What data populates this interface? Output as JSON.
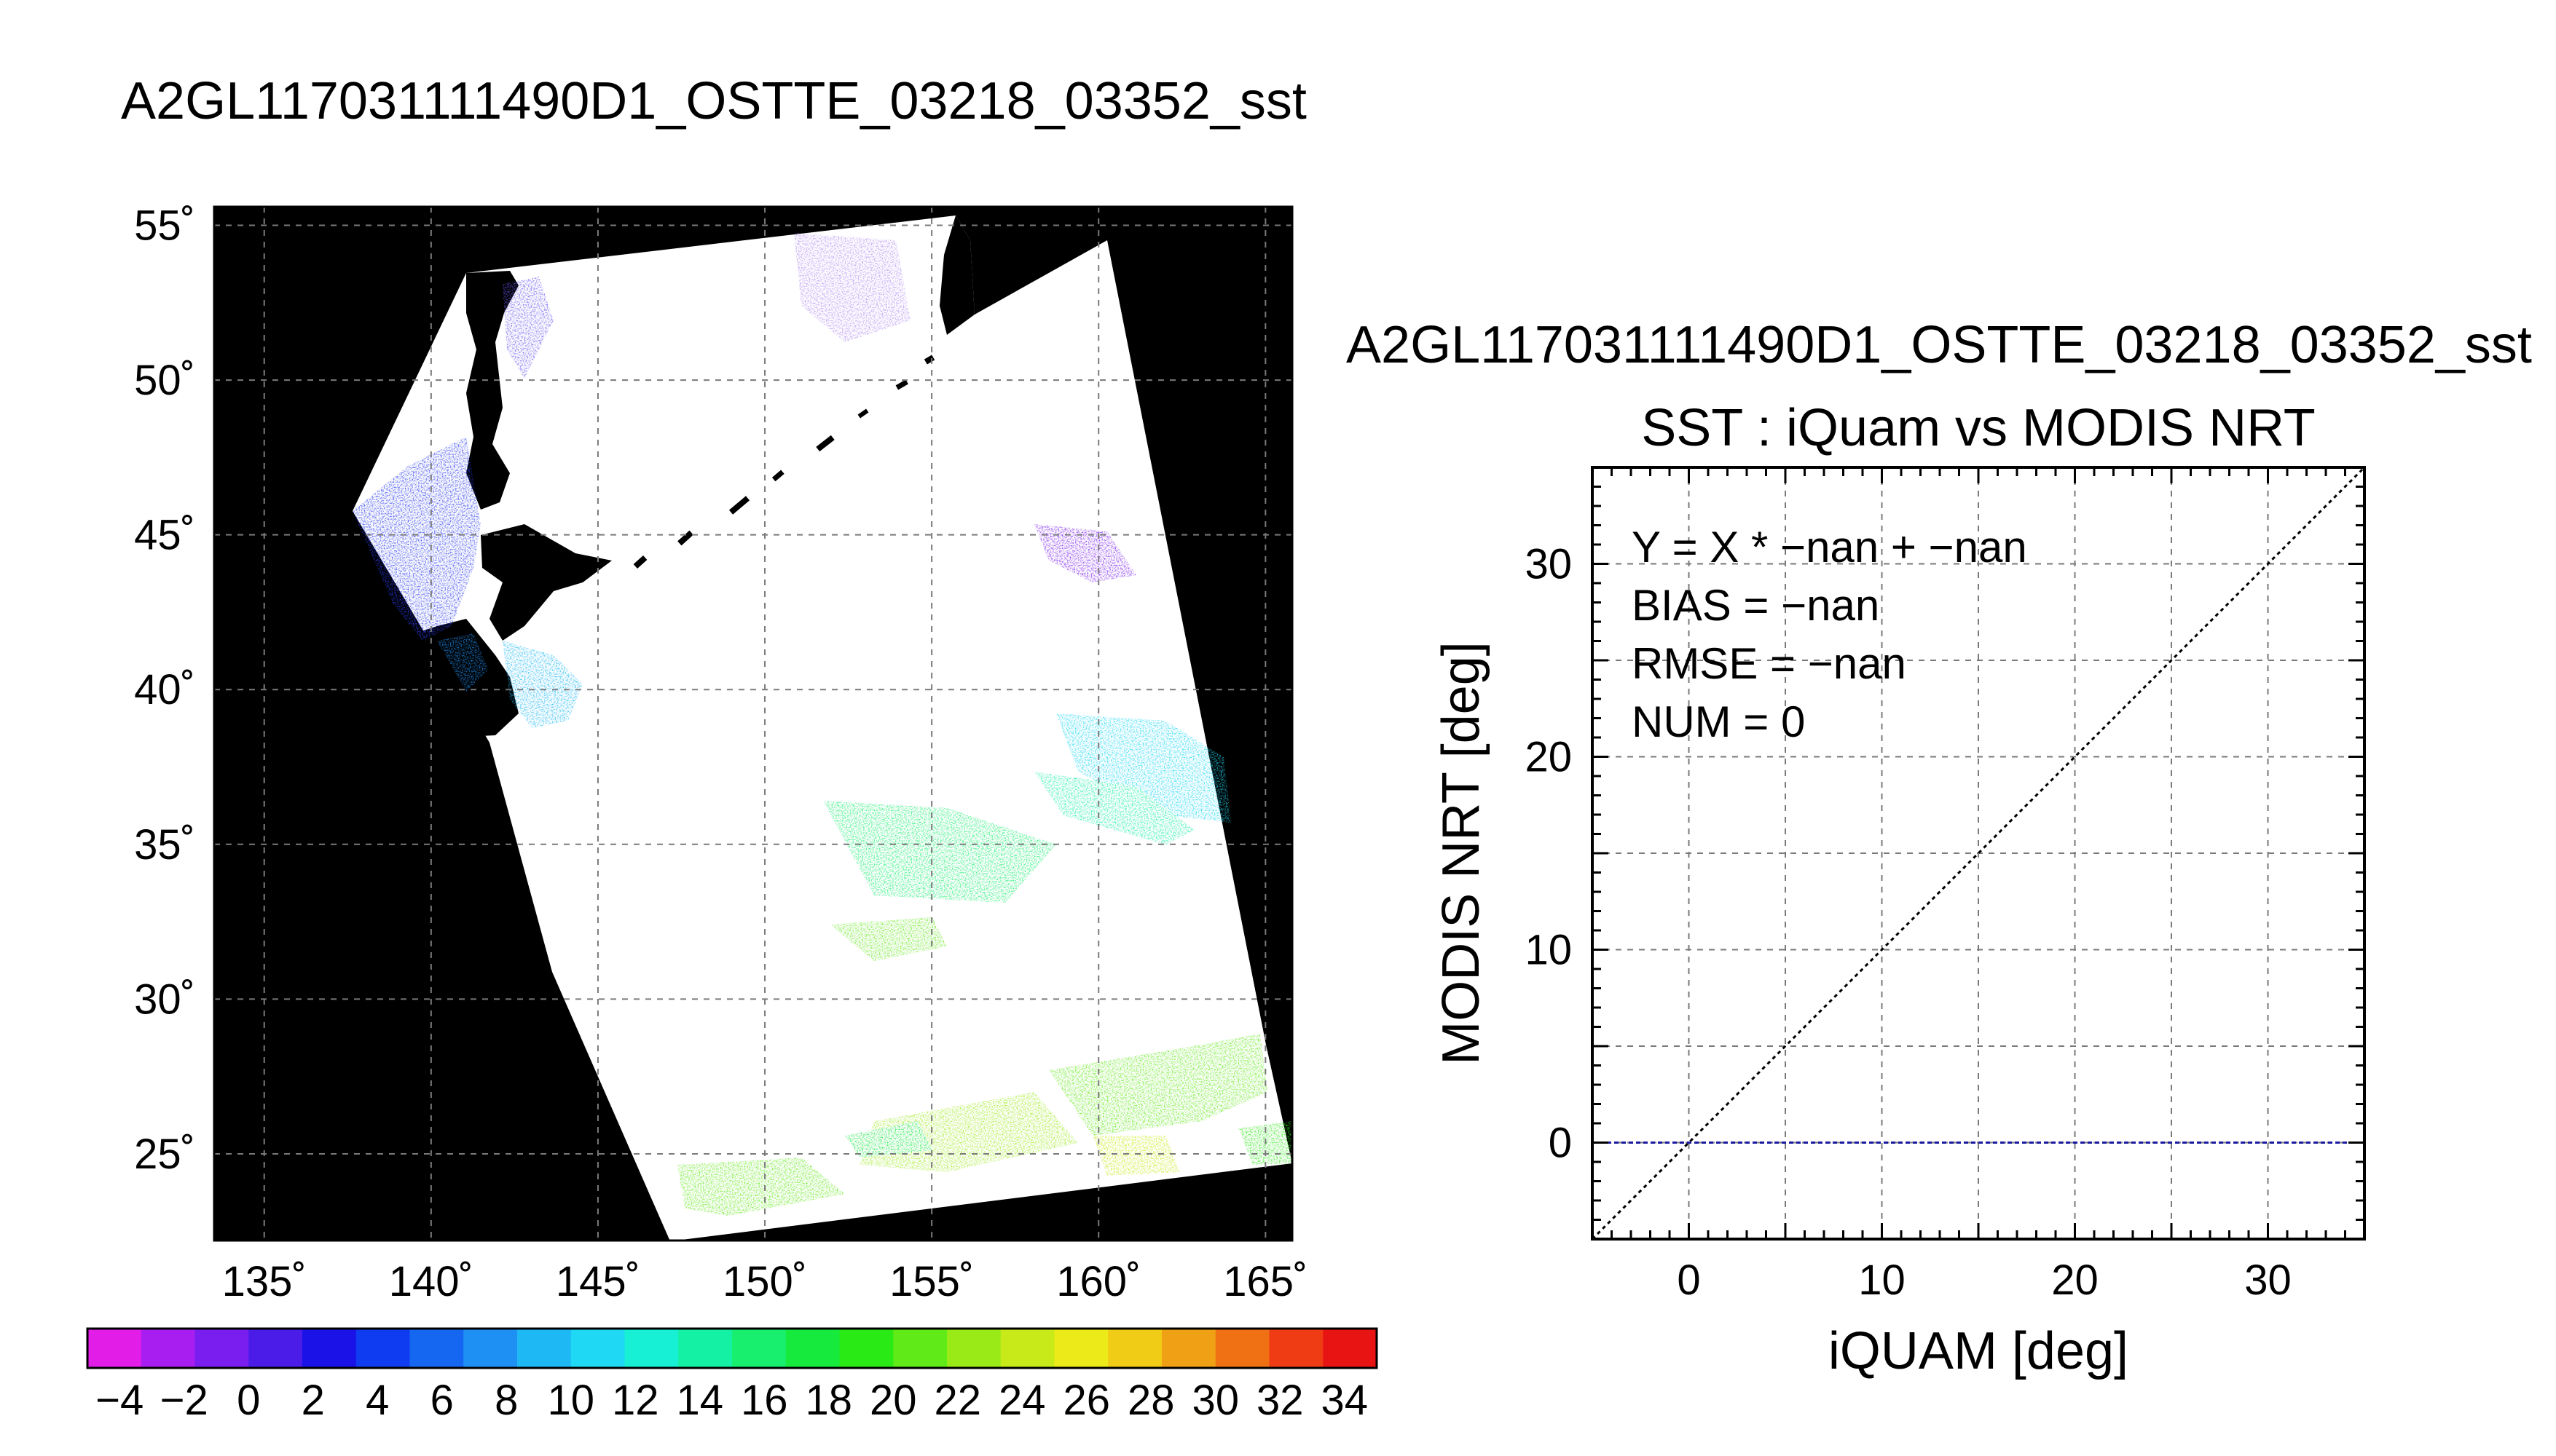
{
  "main_title": "A2GL117031111490D1_OSTTE_03218_03352_sst",
  "chart_data": [
    {
      "type": "heatmap",
      "title": "A2GL117031111490D1_OSTTE_03218_03352_sst",
      "xlabel": "",
      "ylabel": "",
      "x_ticks": [
        "135˚",
        "140˚",
        "145˚",
        "150˚",
        "155˚",
        "160˚",
        "165˚"
      ],
      "x_tick_values": [
        135,
        140,
        145,
        150,
        155,
        160,
        165
      ],
      "y_ticks": [
        "55˚",
        "50˚",
        "45˚",
        "40˚",
        "35˚",
        "30˚",
        "25˚"
      ],
      "y_tick_values": [
        55,
        50,
        45,
        40,
        35,
        30,
        25
      ],
      "xlim": [
        133.5,
        165.8
      ],
      "ylim": [
        22.2,
        55.6
      ],
      "grid": true,
      "colorbar": {
        "ticks": [
          "−4",
          "−2",
          "0",
          "2",
          "4",
          "6",
          "8",
          "10",
          "12",
          "14",
          "16",
          "18",
          "20",
          "22",
          "24",
          "26",
          "28",
          "30",
          "32",
          "34"
        ],
        "range": [
          -5,
          35
        ],
        "colors": [
          "#e21de8",
          "#a81ef0",
          "#7a1ef0",
          "#4b1ce8",
          "#1a12e6",
          "#0f3cf0",
          "#1566f0",
          "#1e90f4",
          "#1eb8f4",
          "#1ed8f4",
          "#18f0d6",
          "#14f0a4",
          "#18ef6e",
          "#16ea3c",
          "#2aea16",
          "#60ea18",
          "#9aea18",
          "#c8ea18",
          "#ecea18",
          "#f0cc16",
          "#f0a014",
          "#f07014",
          "#f03c14",
          "#e81414"
        ]
      }
    },
    {
      "type": "scatter",
      "title": "SST : iQuam vs MODIS NRT",
      "header": "A2GL117031111490D1_OSTTE_03218_03352_sst",
      "xlabel": "iQUAM [deg]",
      "ylabel": "MODIS NRT [deg]",
      "xlim": [
        -5,
        35
      ],
      "ylim": [
        -5,
        35
      ],
      "x_ticks": [
        "0",
        "10",
        "20",
        "30"
      ],
      "x_tick_values": [
        0,
        10,
        20,
        30
      ],
      "y_ticks": [
        "0",
        "10",
        "20",
        "30"
      ],
      "y_tick_values": [
        0,
        10,
        20,
        30
      ],
      "grid": true,
      "reference_line": {
        "name": "y = x",
        "style": "dotted",
        "color": "#000000"
      },
      "zero_line": {
        "y": 0,
        "style": "dashed",
        "color": "#1a1aa0"
      },
      "points": [],
      "annotations": [
        "Y = X * −nan + −nan",
        "BIAS = −nan",
        "RMSE = −nan",
        "NUM = 0"
      ]
    }
  ]
}
